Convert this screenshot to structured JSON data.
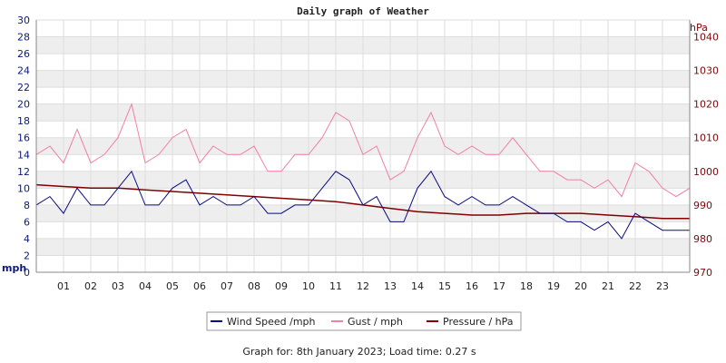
{
  "chart_data": {
    "type": "line",
    "title": "Daily graph of Weather",
    "left_axis": {
      "unit": "mph",
      "ylim": [
        0,
        30
      ],
      "ticks": [
        "0",
        "2",
        "4",
        "6",
        "8",
        "10",
        "12",
        "14",
        "16",
        "18",
        "20",
        "22",
        "24",
        "26",
        "28",
        "30"
      ]
    },
    "right_axis": {
      "unit": "hPa",
      "ylim": [
        970,
        1045
      ],
      "ticks": [
        "970",
        "980",
        "990",
        "1000",
        "1010",
        "1020",
        "1030",
        "1040"
      ]
    },
    "x_ticks": [
      "01",
      "02",
      "03",
      "04",
      "05",
      "06",
      "07",
      "08",
      "09",
      "10",
      "11",
      "12",
      "13",
      "14",
      "15",
      "16",
      "17",
      "18",
      "19",
      "20",
      "21",
      "22",
      "23"
    ],
    "xlim": [
      0,
      24
    ],
    "grid": true,
    "legend_position": "bottom-center",
    "series": [
      {
        "name": "Wind Speed /mph",
        "axis": "left",
        "color": "#0a0a80",
        "x": [
          0,
          0.5,
          1,
          1.5,
          2,
          2.5,
          3,
          3.5,
          4,
          4.5,
          5,
          5.5,
          6,
          6.5,
          7,
          7.5,
          8,
          8.5,
          9,
          9.5,
          10,
          10.5,
          11,
          11.5,
          12,
          12.5,
          13,
          13.5,
          14,
          14.5,
          15,
          15.5,
          16,
          16.5,
          17,
          17.5,
          18,
          18.5,
          19,
          19.5,
          20,
          20.5,
          21,
          21.5,
          22,
          22.5,
          23,
          23.5,
          24
        ],
        "values": [
          8,
          9,
          7,
          10,
          8,
          8,
          10,
          12,
          8,
          8,
          10,
          11,
          8,
          9,
          8,
          8,
          9,
          7,
          7,
          8,
          8,
          10,
          12,
          11,
          8,
          9,
          6,
          6,
          10,
          12,
          9,
          8,
          9,
          8,
          8,
          9,
          8,
          7,
          7,
          6,
          6,
          5,
          6,
          4,
          7,
          6,
          5,
          5,
          5
        ]
      },
      {
        "name": "Gust / mph",
        "axis": "left",
        "color": "#f27fa6",
        "x": [
          0,
          0.5,
          1,
          1.5,
          2,
          2.5,
          3,
          3.5,
          4,
          4.5,
          5,
          5.5,
          6,
          6.5,
          7,
          7.5,
          8,
          8.5,
          9,
          9.5,
          10,
          10.5,
          11,
          11.5,
          12,
          12.5,
          13,
          13.5,
          14,
          14.5,
          15,
          15.5,
          16,
          16.5,
          17,
          17.5,
          18,
          18.5,
          19,
          19.5,
          20,
          20.5,
          21,
          21.5,
          22,
          22.5,
          23,
          23.5,
          24
        ],
        "values": [
          14,
          15,
          13,
          17,
          13,
          14,
          16,
          20,
          13,
          14,
          16,
          17,
          13,
          15,
          14,
          14,
          15,
          12,
          12,
          14,
          14,
          16,
          19,
          18,
          14,
          15,
          11,
          12,
          16,
          19,
          15,
          14,
          15,
          14,
          14,
          16,
          14,
          12,
          12,
          11,
          11,
          10,
          11,
          9,
          13,
          12,
          10,
          9,
          10
        ]
      },
      {
        "name": "Pressure / hPa",
        "axis": "right",
        "color": "#800000",
        "x": [
          0,
          1,
          2,
          3,
          4,
          5,
          6,
          7,
          8,
          9,
          10,
          11,
          12,
          13,
          14,
          15,
          16,
          17,
          18,
          19,
          20,
          21,
          22,
          23,
          24
        ],
        "values": [
          996,
          995.5,
          995,
          995,
          994.5,
          994,
          993.5,
          993,
          992.5,
          992,
          991.5,
          991,
          990,
          989,
          988,
          987.5,
          987,
          987,
          987.5,
          987.5,
          987.5,
          987,
          986.5,
          986,
          986
        ]
      }
    ]
  },
  "footer": "Graph for: 8th January 2023; Load time: 0.27 s"
}
